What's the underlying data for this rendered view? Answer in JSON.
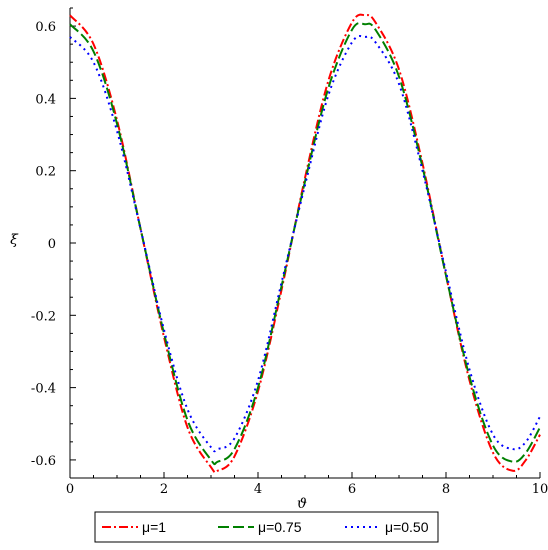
{
  "chart_data": {
    "type": "line",
    "xlabel": "ϑ",
    "ylabel": "ξ",
    "xlim": [
      0,
      10
    ],
    "ylim": [
      -0.65,
      0.65
    ],
    "xticks": [
      0,
      2,
      4,
      6,
      8,
      10
    ],
    "yticks": [
      -0.6,
      -0.4,
      -0.2,
      0,
      0.2,
      0.4,
      0.6
    ],
    "xtick_labels": [
      "0",
      "2",
      "4",
      "6",
      "8",
      "10"
    ],
    "ytick_labels": [
      "-0.6",
      "-0.4",
      "-0.2",
      "0",
      "0.2",
      "0.4",
      "0.6"
    ],
    "grid": false,
    "legend_position": "bottom",
    "series": [
      {
        "name": "μ=1",
        "color": "#ff0000",
        "dash": "dash-dot",
        "x": [
          0,
          0.5,
          1,
          1.5,
          2,
          2.5,
          3,
          3.14,
          3.5,
          4,
          4.5,
          5,
          5.5,
          6,
          6.28,
          6.5,
          7,
          7.5,
          8,
          8.5,
          9,
          9.42,
          9.7,
          10
        ],
        "y": [
          0.63,
          0.55,
          0.34,
          0.04,
          -0.26,
          -0.51,
          -0.62,
          -0.63,
          -0.59,
          -0.41,
          -0.13,
          0.18,
          0.45,
          0.61,
          0.63,
          0.61,
          0.48,
          0.22,
          -0.09,
          -0.38,
          -0.58,
          -0.63,
          -0.6,
          -0.53
        ]
      },
      {
        "name": "μ=0.75",
        "color": "#008000",
        "dash": "dash",
        "x": [
          0,
          0.5,
          1,
          1.5,
          2,
          2.5,
          3,
          3.14,
          3.5,
          4,
          4.5,
          5,
          5.5,
          6,
          6.28,
          6.5,
          7,
          7.5,
          8,
          8.5,
          9,
          9.42,
          9.7,
          10
        ],
        "y": [
          0.605,
          0.53,
          0.33,
          0.04,
          -0.25,
          -0.49,
          -0.6,
          -0.605,
          -0.57,
          -0.4,
          -0.12,
          0.17,
          0.43,
          0.59,
          0.605,
          0.59,
          0.46,
          0.21,
          -0.09,
          -0.37,
          -0.56,
          -0.605,
          -0.58,
          -0.51
        ]
      },
      {
        "name": "μ=0.50",
        "color": "#0000ff",
        "dash": "dot",
        "x": [
          0,
          0.5,
          1,
          1.5,
          2,
          2.5,
          3,
          3.14,
          3.5,
          4,
          4.5,
          5,
          5.5,
          6,
          6.28,
          6.5,
          7,
          7.5,
          8,
          8.5,
          9,
          9.42,
          9.7,
          10
        ],
        "y": [
          0.57,
          0.5,
          0.31,
          0.04,
          -0.24,
          -0.46,
          -0.565,
          -0.57,
          -0.54,
          -0.38,
          -0.11,
          0.16,
          0.41,
          0.555,
          0.57,
          0.555,
          0.44,
          0.2,
          -0.08,
          -0.35,
          -0.53,
          -0.57,
          -0.55,
          -0.48
        ]
      }
    ]
  }
}
